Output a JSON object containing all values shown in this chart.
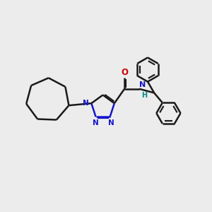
{
  "bg_color": "#ececec",
  "bond_color": "#1a1a1a",
  "n_color": "#1414cc",
  "o_color": "#cc0000",
  "nh_n_color": "#1414cc",
  "nh_h_color": "#008888",
  "line_width": 1.8,
  "figsize": [
    3.0,
    3.0
  ],
  "dpi": 100,
  "xlim": [
    0,
    10
  ],
  "ylim": [
    0,
    10
  ]
}
